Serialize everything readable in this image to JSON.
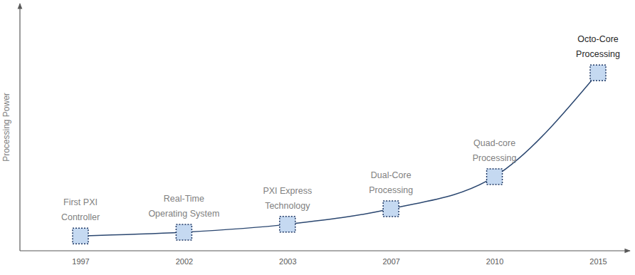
{
  "chart_data": {
    "type": "line",
    "y_label": "Processing Power",
    "categories": [
      "1997",
      "2002",
      "2003",
      "2007",
      "2010",
      "2015"
    ],
    "values": [
      6,
      7.5,
      10.7,
      17,
      30,
      72
    ],
    "ylim": [
      0,
      100
    ],
    "tick_labels": "x",
    "marker": "square",
    "color": "#2b4770",
    "annotations": [
      [
        "First PXI",
        "Controller"
      ],
      [
        "Real-Time",
        "Operating System"
      ],
      [
        "PXI Express",
        "Technology"
      ],
      [
        "Dual-Core",
        "Processing"
      ],
      [
        "Quad-core",
        "Processing"
      ],
      [
        "Octo-Core",
        "Processing"
      ]
    ]
  }
}
